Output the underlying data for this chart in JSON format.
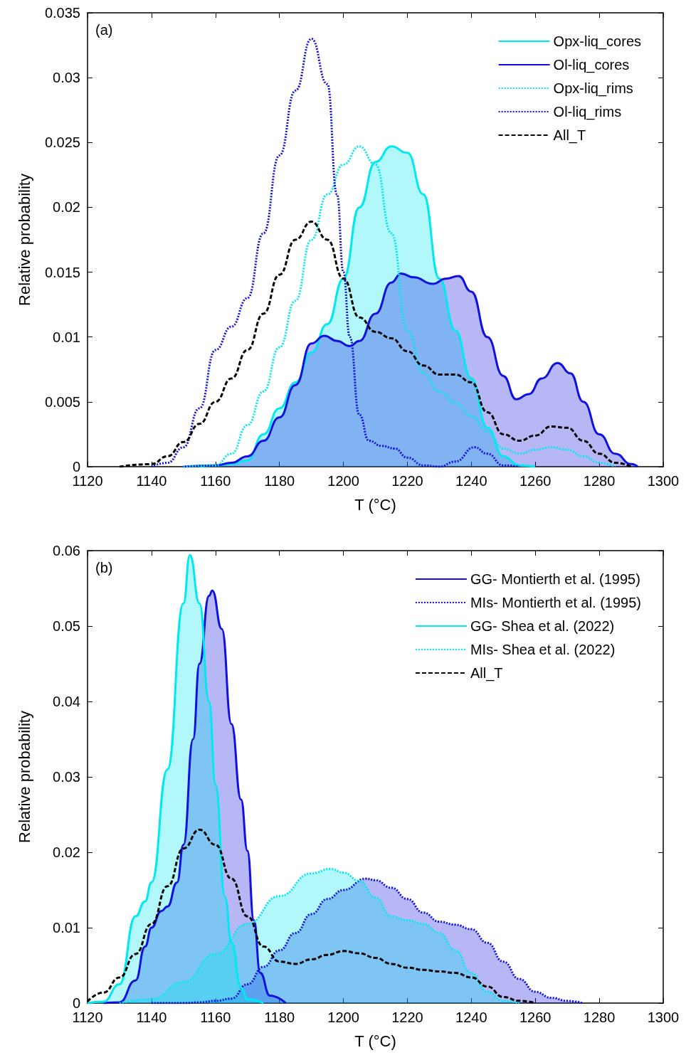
{
  "chart_data": [
    {
      "type": "line",
      "xlabel": "T (°C)",
      "ylabel": "Relative probability",
      "annotations": [
        "(a)"
      ],
      "xlim": [
        1120,
        1300
      ],
      "xticks": [
        1120,
        1140,
        1160,
        1180,
        1200,
        1220,
        1240,
        1260,
        1280,
        1300
      ],
      "ylim": [
        0,
        0.035
      ],
      "yticks": [
        0,
        0.005,
        0.01,
        0.015,
        0.02,
        0.025,
        0.03,
        0.035
      ],
      "grid": false,
      "legend": "top right",
      "series": [
        {
          "name": "Opx-liq_cores",
          "type": "area",
          "color": "#00e8f0",
          "line_style": "solid",
          "x": [
            1155,
            1160,
            1165,
            1170,
            1175,
            1180,
            1185,
            1190,
            1195,
            1200,
            1205,
            1210,
            1215,
            1220,
            1225,
            1230,
            1235,
            1240,
            1245,
            1250,
            1255,
            1260
          ],
          "values": [
            0,
            0.0001,
            0.0002,
            0.0005,
            0.0025,
            0.0045,
            0.0065,
            0.0088,
            0.011,
            0.0145,
            0.02,
            0.0235,
            0.0247,
            0.0242,
            0.021,
            0.0145,
            0.0105,
            0.0068,
            0.003,
            0.0008,
            0.0001,
            0
          ]
        },
        {
          "name": "Ol-liq_cores",
          "type": "area",
          "color": "#1010e0",
          "line_style": "solid",
          "x": [
            1150,
            1160,
            1165,
            1170,
            1175,
            1180,
            1185,
            1190,
            1194,
            1198,
            1202,
            1205,
            1210,
            1215,
            1218,
            1222,
            1228,
            1232,
            1236,
            1240,
            1245,
            1250,
            1254,
            1258,
            1262,
            1267,
            1271,
            1275,
            1280,
            1285,
            1290,
            1292
          ],
          "values": [
            0,
            0.0001,
            0.0003,
            0.0008,
            0.002,
            0.0038,
            0.0063,
            0.0095,
            0.0101,
            0.0097,
            0.0093,
            0.0097,
            0.0118,
            0.0142,
            0.0149,
            0.0146,
            0.0141,
            0.0145,
            0.0147,
            0.0135,
            0.01,
            0.007,
            0.0052,
            0.0056,
            0.0068,
            0.008,
            0.0072,
            0.005,
            0.0025,
            0.001,
            0.0002,
            0
          ]
        },
        {
          "name": "Opx-liq_rims",
          "type": "line",
          "color": "#00e8f0",
          "line_style": "dotted",
          "x": [
            1150,
            1160,
            1165,
            1170,
            1175,
            1180,
            1185,
            1190,
            1195,
            1200,
            1205,
            1210,
            1215,
            1220,
            1225,
            1230,
            1235,
            1240,
            1245,
            1250,
            1255,
            1260,
            1265,
            1270,
            1275,
            1280,
            1285
          ],
          "values": [
            0,
            0.0001,
            0.001,
            0.0032,
            0.0058,
            0.0092,
            0.0128,
            0.0175,
            0.021,
            0.0233,
            0.0247,
            0.0233,
            0.018,
            0.0105,
            0.0072,
            0.0058,
            0.0049,
            0.0039,
            0.0027,
            0.0014,
            0.001,
            0.0013,
            0.0015,
            0.0013,
            0.0008,
            0.0003,
            0
          ]
        },
        {
          "name": "Ol-liq_rims",
          "type": "line",
          "color": "#1010e0",
          "line_style": "dotted",
          "x": [
            1140,
            1145,
            1150,
            1155,
            1160,
            1165,
            1170,
            1175,
            1180,
            1185,
            1190,
            1195,
            1198,
            1200,
            1202,
            1205,
            1208,
            1212,
            1216,
            1220,
            1225,
            1230,
            1235,
            1241,
            1245,
            1250,
            1255
          ],
          "values": [
            0,
            0.0003,
            0.0015,
            0.0045,
            0.009,
            0.0108,
            0.013,
            0.018,
            0.024,
            0.029,
            0.033,
            0.0295,
            0.021,
            0.015,
            0.01,
            0.004,
            0.002,
            0.0016,
            0.0014,
            0.0007,
            0.0001,
            0,
            0.0004,
            0.0015,
            0.001,
            0.0001,
            0
          ]
        },
        {
          "name": "All_T",
          "type": "line",
          "color": "#000000",
          "line_style": "dashed",
          "x": [
            1130,
            1140,
            1145,
            1150,
            1155,
            1160,
            1165,
            1170,
            1175,
            1180,
            1185,
            1190,
            1195,
            1200,
            1205,
            1210,
            1215,
            1220,
            1225,
            1230,
            1235,
            1240,
            1245,
            1250,
            1255,
            1260,
            1265,
            1270,
            1275,
            1280,
            1285,
            1290
          ],
          "values": [
            0,
            0.0002,
            0.0008,
            0.0019,
            0.0033,
            0.005,
            0.0068,
            0.009,
            0.0118,
            0.0148,
            0.0175,
            0.0189,
            0.0175,
            0.0145,
            0.0115,
            0.0104,
            0.0099,
            0.0089,
            0.0078,
            0.0071,
            0.0071,
            0.0065,
            0.0042,
            0.0025,
            0.002,
            0.0024,
            0.0031,
            0.003,
            0.002,
            0.001,
            0.0003,
            0
          ]
        }
      ]
    },
    {
      "type": "line",
      "xlabel": "T (°C)",
      "ylabel": "Relative probability",
      "annotations": [
        "(b)"
      ],
      "xlim": [
        1120,
        1300
      ],
      "xticks": [
        1120,
        1140,
        1160,
        1180,
        1200,
        1220,
        1240,
        1260,
        1280,
        1300
      ],
      "ylim": [
        0,
        0.06
      ],
      "yticks": [
        0,
        0.01,
        0.02,
        0.03,
        0.04,
        0.05,
        0.06
      ],
      "grid": false,
      "legend": "top right",
      "series": [
        {
          "name": "GG- Montierth et al. (1995)",
          "type": "area",
          "color": "#1010e0",
          "line_style": "solid",
          "x": [
            1125,
            1130,
            1135,
            1138,
            1140,
            1143,
            1145,
            1148,
            1150,
            1153,
            1155,
            1158,
            1159,
            1162,
            1165,
            1168,
            1170,
            1172,
            1174,
            1177,
            1182
          ],
          "values": [
            0,
            0.0001,
            0.003,
            0.0075,
            0.01,
            0.0122,
            0.0128,
            0.016,
            0.021,
            0.035,
            0.045,
            0.054,
            0.0547,
            0.0496,
            0.037,
            0.027,
            0.0202,
            0.011,
            0.004,
            0.001,
            0
          ]
        },
        {
          "name": "MIs- Montierth et al. (1995)",
          "type": "area",
          "color": "#1010e0",
          "line_style": "dotted",
          "x": [
            1140,
            1150,
            1155,
            1160,
            1165,
            1170,
            1175,
            1180,
            1185,
            1190,
            1195,
            1200,
            1207,
            1210,
            1215,
            1220,
            1225,
            1230,
            1235,
            1240,
            1245,
            1250,
            1255,
            1260,
            1265,
            1270,
            1275
          ],
          "values": [
            0,
            0,
            0.0001,
            0.0003,
            0.0006,
            0.0025,
            0.0048,
            0.007,
            0.0093,
            0.0118,
            0.0138,
            0.015,
            0.0165,
            0.0163,
            0.0153,
            0.0138,
            0.012,
            0.0108,
            0.0104,
            0.0098,
            0.008,
            0.0055,
            0.0032,
            0.0015,
            0.0007,
            0.0003,
            0
          ]
        },
        {
          "name": "GG- Shea et al. (2022)",
          "type": "area",
          "color": "#00e8f0",
          "line_style": "solid",
          "x": [
            1120,
            1125,
            1130,
            1135,
            1138,
            1140,
            1145,
            1150,
            1152,
            1155,
            1158,
            1160,
            1163,
            1165,
            1168,
            1170,
            1175
          ],
          "values": [
            0,
            0.0002,
            0.0025,
            0.0115,
            0.0135,
            0.016,
            0.031,
            0.053,
            0.0594,
            0.053,
            0.04,
            0.029,
            0.014,
            0.008,
            0.002,
            0.0005,
            0
          ]
        },
        {
          "name": "MIs- Shea et al. (2022)",
          "type": "area",
          "color": "#00e8f0",
          "line_style": "dotted",
          "x": [
            1130,
            1140,
            1150,
            1160,
            1170,
            1180,
            1190,
            1196,
            1200,
            1205,
            1210,
            1215,
            1220,
            1225,
            1230,
            1235,
            1240,
            1245,
            1250,
            1255
          ],
          "values": [
            0,
            0.0005,
            0.0028,
            0.0065,
            0.0105,
            0.0142,
            0.0172,
            0.0178,
            0.0173,
            0.0162,
            0.014,
            0.0115,
            0.011,
            0.0105,
            0.0093,
            0.007,
            0.004,
            0.0015,
            0.0003,
            0
          ]
        },
        {
          "name": "All_T",
          "type": "line",
          "color": "#000000",
          "line_style": "dashed",
          "x": [
            1120,
            1125,
            1130,
            1135,
            1140,
            1145,
            1150,
            1155,
            1160,
            1165,
            1170,
            1175,
            1180,
            1185,
            1190,
            1195,
            1200,
            1205,
            1210,
            1215,
            1220,
            1225,
            1230,
            1235,
            1240,
            1245,
            1250,
            1255,
            1260
          ],
          "values": [
            0.0002,
            0.0014,
            0.0034,
            0.0065,
            0.0105,
            0.0155,
            0.0205,
            0.023,
            0.021,
            0.0165,
            0.0115,
            0.0075,
            0.0055,
            0.0052,
            0.0058,
            0.0064,
            0.0069,
            0.0066,
            0.006,
            0.0052,
            0.0047,
            0.0044,
            0.0042,
            0.004,
            0.0034,
            0.0022,
            0.0008,
            0.0003,
            0
          ]
        }
      ]
    }
  ]
}
